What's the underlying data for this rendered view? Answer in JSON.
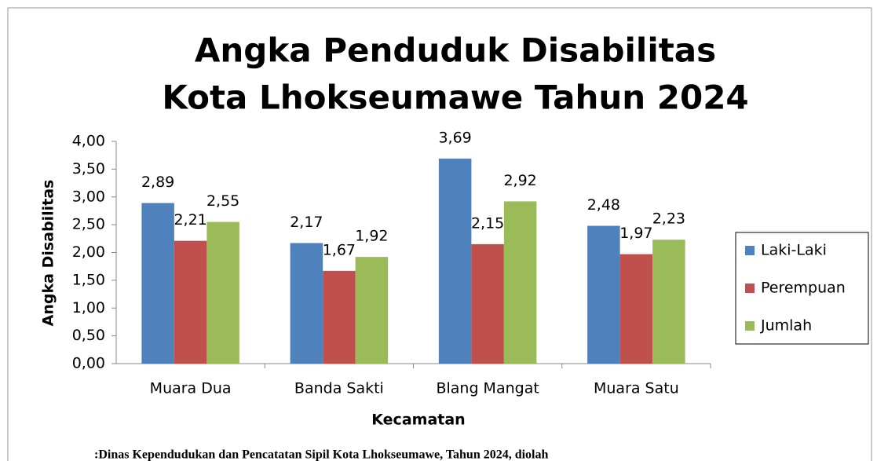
{
  "chart_data": {
    "type": "bar",
    "title": [
      "Angka Penduduk Disabilitas",
      "Kota Lhokseumawe Tahun 2024"
    ],
    "y_label": "Angka Disabilitas",
    "x_label": "Kecamatan",
    "source": ":Dinas Kependudukan dan Pencatatan Sipil Kota Lhokseumawe, Tahun 2024, diolah",
    "categories": [
      "Muara Dua",
      "Banda Sakti",
      "Blang Mangat",
      "Muara Satu"
    ],
    "series": [
      {
        "name": "Laki-Laki",
        "color": "#4f81bd",
        "values": [
          2.89,
          2.17,
          3.69,
          2.48
        ],
        "value_labels": [
          "2,89",
          "2,17",
          "3,69",
          "2,48"
        ]
      },
      {
        "name": "Perempuan",
        "color": "#c0504d",
        "values": [
          2.21,
          1.67,
          2.15,
          1.97
        ],
        "value_labels": [
          "2,21",
          "1,67",
          "2,15",
          "1,97"
        ]
      },
      {
        "name": "Jumlah",
        "color": "#9bbb59",
        "values": [
          2.55,
          1.92,
          2.92,
          2.23
        ],
        "value_labels": [
          "2,55",
          "1,92",
          "2,92",
          "2,23"
        ]
      }
    ],
    "ylim": [
      0,
      4
    ],
    "yticks": [
      {
        "value": 0,
        "label": "0,00"
      },
      {
        "value": 0.5,
        "label": "0,50"
      },
      {
        "value": 1,
        "label": "1,00"
      },
      {
        "value": 1.5,
        "label": "1,50"
      },
      {
        "value": 2,
        "label": "2,00"
      },
      {
        "value": 2.5,
        "label": "2,50"
      },
      {
        "value": 3,
        "label": "3,00"
      },
      {
        "value": 3.5,
        "label": "3,50"
      },
      {
        "value": 4,
        "label": "4,00"
      }
    ],
    "grid": false,
    "legend": "right"
  }
}
